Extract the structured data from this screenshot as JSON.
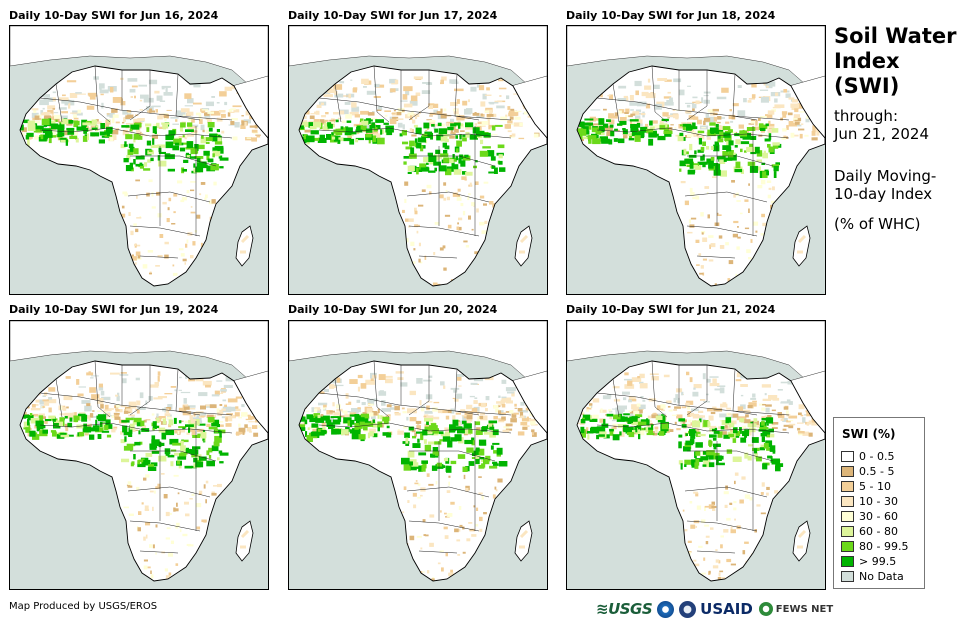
{
  "panels": [
    {
      "title": "Daily 10-Day SWI for Jun 16, 2024"
    },
    {
      "title": "Daily 10-Day SWI for Jun 17, 2024"
    },
    {
      "title": "Daily 10-Day SWI for Jun 18, 2024"
    },
    {
      "title": "Daily 10-Day SWI for Jun 19, 2024"
    },
    {
      "title": "Daily 10-Day SWI for Jun 20, 2024"
    },
    {
      "title": "Daily 10-Day SWI for Jun 21, 2024"
    }
  ],
  "header": {
    "title": "Soil Water Index (SWI)",
    "through_label": "through:",
    "through_date": "Jun 21, 2024",
    "desc": "Daily Moving-10-day Index",
    "unit": "(% of WHC)"
  },
  "legend": {
    "title": "SWI (%)",
    "items": [
      {
        "label": "0 - 0.5",
        "color": "#ffffff"
      },
      {
        "label": "0.5 - 5",
        "color": "#dcb579"
      },
      {
        "label": "5 - 10",
        "color": "#f3cf98"
      },
      {
        "label": "10 - 30",
        "color": "#fbe6c1"
      },
      {
        "label": "30 - 60",
        "color": "#ffffd6"
      },
      {
        "label": "60 - 80",
        "color": "#ddf59a"
      },
      {
        "label": "80 - 99.5",
        "color": "#6bd91a"
      },
      {
        "label": "> 99.5",
        "color": "#00b400"
      },
      {
        "label": "No Data",
        "color": "#d3dfdb"
      }
    ]
  },
  "footer": {
    "credit": "Map Produced by USGS/EROS",
    "logo_usgs": "≋USGS",
    "logo_usaid": "USAID",
    "logo_fews": "FEWS NET"
  }
}
